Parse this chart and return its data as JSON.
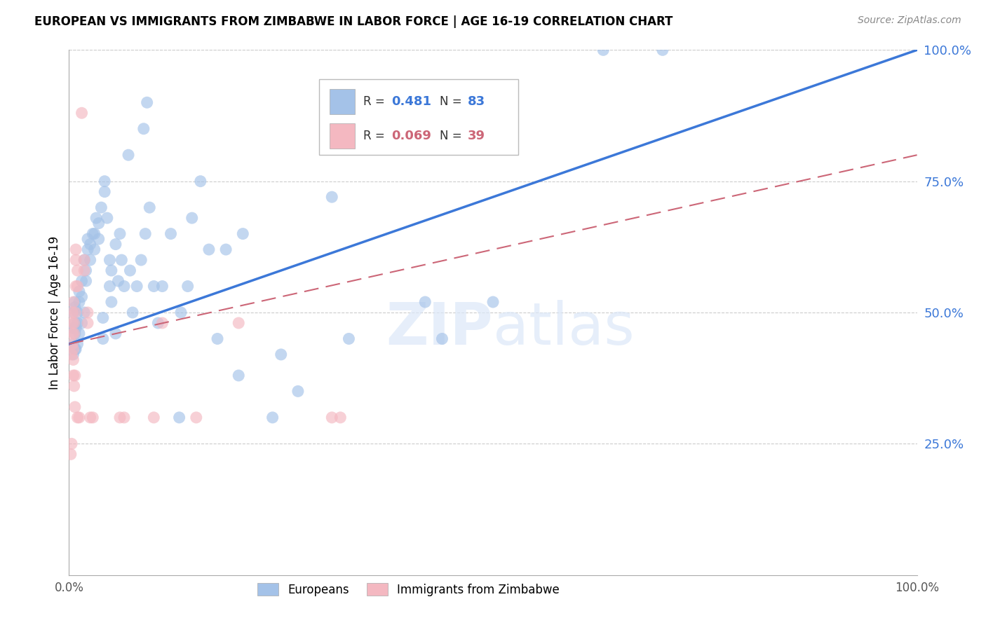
{
  "title": "EUROPEAN VS IMMIGRANTS FROM ZIMBABWE IN LABOR FORCE | AGE 16-19 CORRELATION CHART",
  "source": "Source: ZipAtlas.com",
  "ylabel": "In Labor Force | Age 16-19",
  "xlim": [
    0,
    1.0
  ],
  "ylim": [
    0,
    1.0
  ],
  "yticks": [
    0.25,
    0.5,
    0.75,
    1.0
  ],
  "xticks": [
    0,
    1.0
  ],
  "xtick_labels": [
    "0.0%",
    "100.0%"
  ],
  "ytick_labels_right": [
    "25.0%",
    "50.0%",
    "75.0%",
    "100.0%"
  ],
  "legend_R_blue": "0.481",
  "legend_N_blue": "83",
  "legend_R_pink": "0.069",
  "legend_N_pink": "39",
  "blue_color": "#a4c2e8",
  "blue_line_color": "#3c78d8",
  "pink_color": "#f4b8c1",
  "pink_line_color": "#cc6677",
  "grid_color": "#cccccc",
  "watermark": "ZIPatlas",
  "blue_regline_x": [
    0.0,
    1.0
  ],
  "blue_regline_y": [
    0.44,
    1.0
  ],
  "pink_regline_x": [
    0.0,
    1.0
  ],
  "pink_regline_y": [
    0.44,
    0.8
  ],
  "blue_scatter": [
    [
      0.005,
      0.44
    ],
    [
      0.005,
      0.47
    ],
    [
      0.005,
      0.5
    ],
    [
      0.005,
      0.42
    ],
    [
      0.007,
      0.46
    ],
    [
      0.007,
      0.43
    ],
    [
      0.007,
      0.52
    ],
    [
      0.007,
      0.51
    ],
    [
      0.007,
      0.48
    ],
    [
      0.008,
      0.47
    ],
    [
      0.008,
      0.43
    ],
    [
      0.01,
      0.44
    ],
    [
      0.01,
      0.5
    ],
    [
      0.01,
      0.48
    ],
    [
      0.012,
      0.46
    ],
    [
      0.012,
      0.52
    ],
    [
      0.012,
      0.54
    ],
    [
      0.015,
      0.53
    ],
    [
      0.015,
      0.56
    ],
    [
      0.015,
      0.48
    ],
    [
      0.018,
      0.5
    ],
    [
      0.018,
      0.6
    ],
    [
      0.02,
      0.56
    ],
    [
      0.02,
      0.58
    ],
    [
      0.022,
      0.62
    ],
    [
      0.022,
      0.64
    ],
    [
      0.025,
      0.6
    ],
    [
      0.025,
      0.63
    ],
    [
      0.028,
      0.65
    ],
    [
      0.03,
      0.62
    ],
    [
      0.03,
      0.65
    ],
    [
      0.032,
      0.68
    ],
    [
      0.035,
      0.64
    ],
    [
      0.035,
      0.67
    ],
    [
      0.038,
      0.7
    ],
    [
      0.04,
      0.45
    ],
    [
      0.04,
      0.49
    ],
    [
      0.042,
      0.75
    ],
    [
      0.042,
      0.73
    ],
    [
      0.045,
      0.68
    ],
    [
      0.048,
      0.55
    ],
    [
      0.048,
      0.6
    ],
    [
      0.05,
      0.52
    ],
    [
      0.05,
      0.58
    ],
    [
      0.055,
      0.63
    ],
    [
      0.055,
      0.46
    ],
    [
      0.058,
      0.56
    ],
    [
      0.06,
      0.65
    ],
    [
      0.062,
      0.6
    ],
    [
      0.065,
      0.55
    ],
    [
      0.07,
      0.8
    ],
    [
      0.072,
      0.58
    ],
    [
      0.075,
      0.5
    ],
    [
      0.08,
      0.55
    ],
    [
      0.085,
      0.6
    ],
    [
      0.088,
      0.85
    ],
    [
      0.09,
      0.65
    ],
    [
      0.092,
      0.9
    ],
    [
      0.095,
      0.7
    ],
    [
      0.1,
      0.55
    ],
    [
      0.105,
      0.48
    ],
    [
      0.11,
      0.55
    ],
    [
      0.12,
      0.65
    ],
    [
      0.13,
      0.3
    ],
    [
      0.132,
      0.5
    ],
    [
      0.14,
      0.55
    ],
    [
      0.145,
      0.68
    ],
    [
      0.155,
      0.75
    ],
    [
      0.165,
      0.62
    ],
    [
      0.175,
      0.45
    ],
    [
      0.185,
      0.62
    ],
    [
      0.2,
      0.38
    ],
    [
      0.205,
      0.65
    ],
    [
      0.24,
      0.3
    ],
    [
      0.25,
      0.42
    ],
    [
      0.27,
      0.35
    ],
    [
      0.31,
      0.72
    ],
    [
      0.33,
      0.45
    ],
    [
      0.42,
      0.52
    ],
    [
      0.44,
      0.45
    ],
    [
      0.5,
      0.52
    ],
    [
      0.63,
      1.0
    ],
    [
      0.7,
      1.0
    ]
  ],
  "pink_scatter": [
    [
      0.002,
      0.23
    ],
    [
      0.003,
      0.25
    ],
    [
      0.003,
      0.42
    ],
    [
      0.004,
      0.44
    ],
    [
      0.004,
      0.46
    ],
    [
      0.004,
      0.48
    ],
    [
      0.004,
      0.5
    ],
    [
      0.005,
      0.52
    ],
    [
      0.005,
      0.43
    ],
    [
      0.005,
      0.41
    ],
    [
      0.005,
      0.38
    ],
    [
      0.006,
      0.36
    ],
    [
      0.006,
      0.46
    ],
    [
      0.006,
      0.48
    ],
    [
      0.007,
      0.38
    ],
    [
      0.007,
      0.32
    ],
    [
      0.007,
      0.5
    ],
    [
      0.008,
      0.55
    ],
    [
      0.008,
      0.6
    ],
    [
      0.008,
      0.62
    ],
    [
      0.01,
      0.58
    ],
    [
      0.01,
      0.55
    ],
    [
      0.01,
      0.3
    ],
    [
      0.012,
      0.3
    ],
    [
      0.015,
      0.88
    ],
    [
      0.018,
      0.58
    ],
    [
      0.018,
      0.6
    ],
    [
      0.022,
      0.48
    ],
    [
      0.022,
      0.5
    ],
    [
      0.025,
      0.3
    ],
    [
      0.028,
      0.3
    ],
    [
      0.06,
      0.3
    ],
    [
      0.065,
      0.3
    ],
    [
      0.1,
      0.3
    ],
    [
      0.11,
      0.48
    ],
    [
      0.15,
      0.3
    ],
    [
      0.2,
      0.48
    ],
    [
      0.31,
      0.3
    ],
    [
      0.32,
      0.3
    ]
  ]
}
